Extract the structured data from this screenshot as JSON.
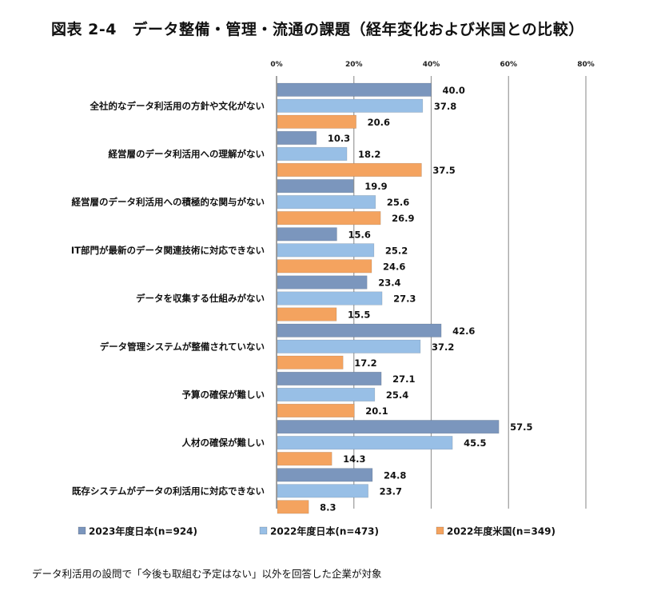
{
  "title": "図表 2-4　データ整備・管理・流通の課題（経年変化および米国との比較）",
  "note": "データ利活用の設問で「今後も取組む予定はない」以外を回答した企業が対象",
  "chart_data": {
    "type": "bar",
    "orientation": "horizontal",
    "xlim": [
      0,
      80
    ],
    "ticks": [
      0,
      20,
      40,
      60,
      80
    ],
    "tick_labels": [
      "0%",
      "20%",
      "40%",
      "60%",
      "80%"
    ],
    "grid": true,
    "legend_position": "bottom",
    "categories": [
      "全社的なデータ利活用の方針や文化がない",
      "経営層のデータ利活用への理解がない",
      "経営層のデータ利活用への積極的な関与がない",
      "IT部門が最新のデータ関連技術に対応できない",
      "データを収集する仕組みがない",
      "データ管理システムが整備されていない",
      "予算の確保が難しい",
      "人材の確保が難しい",
      "既存システムがデータの利活用に対応できない"
    ],
    "series": [
      {
        "name": "2023年度日本(n=924)",
        "color": "#7b96bd",
        "values": [
          40.0,
          10.3,
          19.9,
          15.6,
          23.4,
          42.6,
          27.1,
          57.5,
          24.8
        ],
        "labels": [
          "40.0",
          "10.3",
          "19.9",
          "15.6",
          "23.4",
          "42.6",
          "27.1",
          "57.5",
          "24.8"
        ]
      },
      {
        "name": "2022年度日本(n=473)",
        "color": "#98bfe6",
        "values": [
          37.8,
          18.2,
          25.6,
          25.2,
          27.3,
          37.2,
          25.4,
          45.5,
          23.7
        ],
        "labels": [
          "37.8",
          "18.2",
          "25.6",
          "25.2",
          "27.3",
          "37.2",
          "25.4",
          "45.5",
          "23.7"
        ]
      },
      {
        "name": "2022年度米国(n=349)",
        "color": "#f4a35f",
        "values": [
          20.6,
          37.5,
          26.9,
          24.6,
          15.5,
          17.2,
          20.1,
          14.3,
          8.3
        ],
        "labels": [
          "20.6",
          "37.5",
          "26.9",
          "24.6",
          "15.5",
          "17.2",
          "20.1",
          "14.3",
          "8.3"
        ]
      }
    ]
  }
}
